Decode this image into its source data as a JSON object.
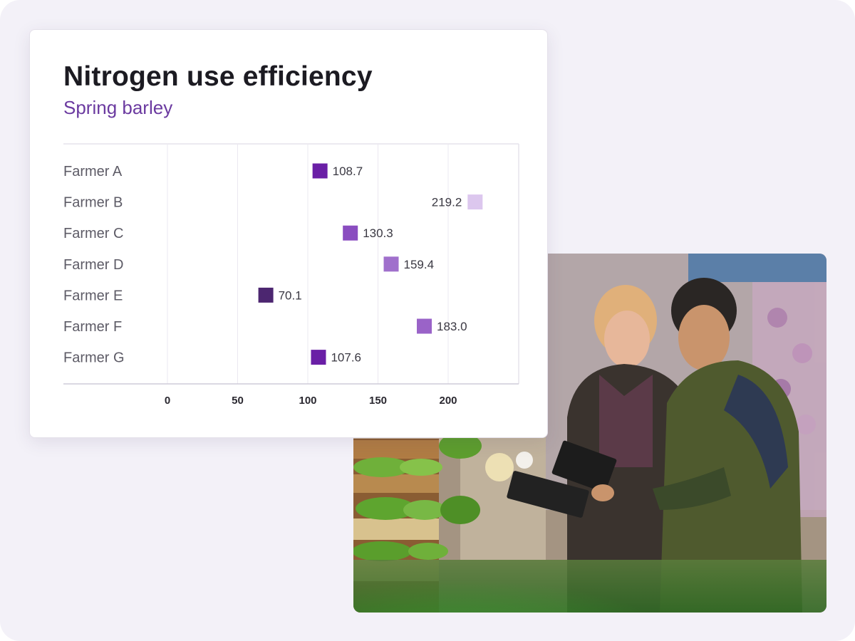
{
  "card": {
    "title": "Nitrogen use efficiency",
    "subtitle": "Spring barley"
  },
  "chart_data": {
    "type": "scatter",
    "title": "Nitrogen use efficiency",
    "subtitle": "Spring barley",
    "xlabel": "",
    "ylabel": "",
    "xlim": [
      -16,
      248
    ],
    "xticks": [
      0,
      50,
      100,
      150,
      200
    ],
    "grid": true,
    "categories": [
      "Farmer A",
      "Farmer B",
      "Farmer C",
      "Farmer D",
      "Farmer E",
      "Farmer F",
      "Farmer G"
    ],
    "values": [
      108.7,
      219.2,
      130.3,
      159.4,
      70.1,
      183.0,
      107.6
    ],
    "value_labels": [
      "108.7",
      "219.2",
      "130.3",
      "159.4",
      "70.1",
      "183.0",
      "107.6"
    ],
    "marker_colors": [
      "#6a1fa6",
      "#dcc7ee",
      "#8a4dc0",
      "#a070cc",
      "#4c2670",
      "#9a63c8",
      "#6a1fa6"
    ],
    "label_side": [
      "right",
      "left",
      "right",
      "right",
      "right",
      "right",
      "right"
    ]
  },
  "photo": {
    "icon": "people-with-tablet-photo"
  }
}
